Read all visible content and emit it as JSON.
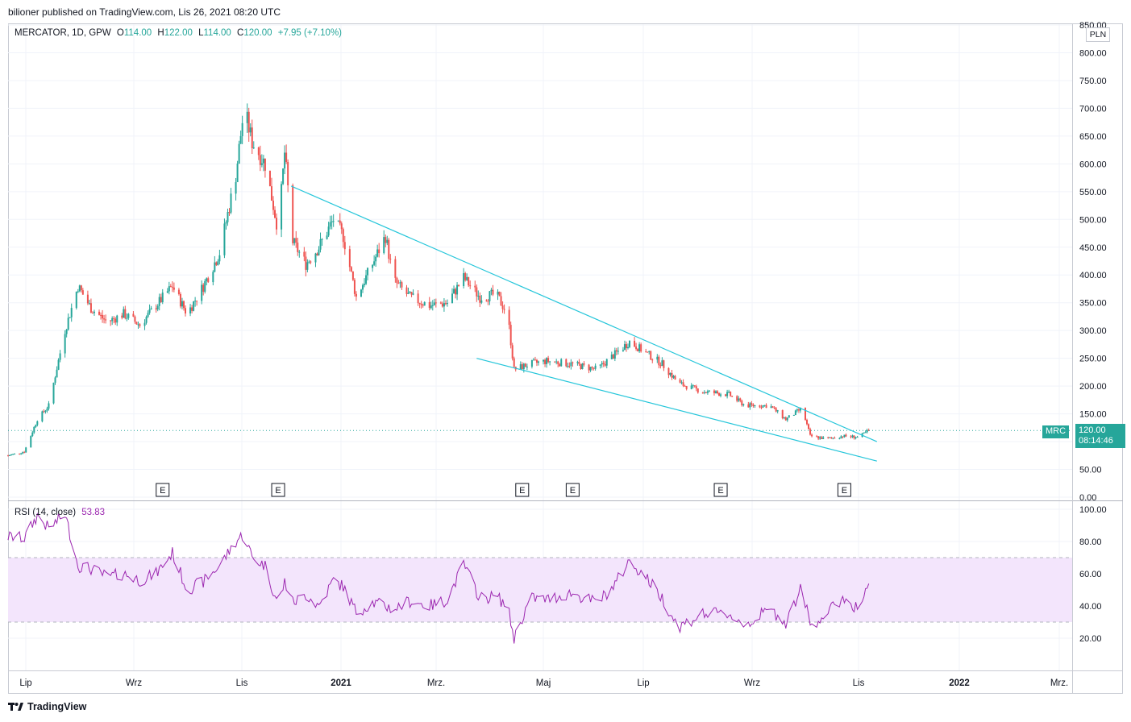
{
  "header": {
    "published": "bilioner published on TradingView.com, Lis 26, 2021 08:20 UTC"
  },
  "legend": {
    "symbol": "MERCATOR, 1D, GPW",
    "open_label": "O",
    "open": "114.00",
    "high_label": "H",
    "high": "122.00",
    "low_label": "L",
    "low": "114.00",
    "close_label": "C",
    "close": "120.00",
    "change": "+7.95 (+7.10%)"
  },
  "rsi_legend": {
    "label": "RSI (14, close)",
    "value": "53.83"
  },
  "price_axis": {
    "currency": "PLN",
    "ticks": [
      "850.00",
      "800.00",
      "750.00",
      "700.00",
      "650.00",
      "600.00",
      "550.00",
      "500.00",
      "450.00",
      "400.00",
      "350.00",
      "300.00",
      "250.00",
      "200.00",
      "150.00",
      "100.00",
      "50.00",
      "0.00"
    ]
  },
  "rsi_axis": {
    "ticks": [
      "100.00",
      "80.00",
      "60.00",
      "40.00",
      "20.00"
    ]
  },
  "time_axis": {
    "labels": [
      "Lip",
      "Wrz",
      "Lis",
      "2021",
      "Mrz.",
      "Maj",
      "Lip",
      "Wrz",
      "Lis",
      "2022",
      "Mrz."
    ]
  },
  "last_price": {
    "ticker": "MRC",
    "price": "120.00",
    "countdown": "08:14:46"
  },
  "earnings_marker": "E",
  "footer": {
    "brand": "TradingView"
  },
  "colors": {
    "up": "#26a69a",
    "down": "#ef5350",
    "trendline": "#26c6da",
    "rsi": "#9c27b0",
    "rsi_band": "#f3e5fc",
    "accent": "#26a69a"
  },
  "chart_data": {
    "type": "candlestick",
    "symbol": "MERCATOR",
    "interval": "1D",
    "exchange": "GPW",
    "currency": "PLN",
    "ylim": [
      0,
      850
    ],
    "x_range": [
      "2020-06-15",
      "2022-03-31"
    ],
    "price_path": [
      [
        "2020-06-15",
        75
      ],
      [
        "2020-06-25",
        82
      ],
      [
        "2020-07-03",
        140
      ],
      [
        "2020-07-10",
        165
      ],
      [
        "2020-07-20",
        300
      ],
      [
        "2020-07-28",
        380
      ],
      [
        "2020-08-05",
        340
      ],
      [
        "2020-08-15",
        315
      ],
      [
        "2020-08-25",
        330
      ],
      [
        "2020-09-04",
        310
      ],
      [
        "2020-09-14",
        345
      ],
      [
        "2020-09-24",
        380
      ],
      [
        "2020-10-03",
        330
      ],
      [
        "2020-10-13",
        380
      ],
      [
        "2020-10-23",
        440
      ],
      [
        "2020-11-02",
        580
      ],
      [
        "2020-11-07",
        700
      ],
      [
        "2020-11-12",
        640
      ],
      [
        "2020-11-20",
        600
      ],
      [
        "2020-11-28",
        480
      ],
      [
        "2020-12-02",
        620
      ],
      [
        "2020-12-07",
        460
      ],
      [
        "2020-12-15",
        420
      ],
      [
        "2020-12-23",
        450
      ],
      [
        "2021-01-01",
        500
      ],
      [
        "2021-01-07",
        470
      ],
      [
        "2021-01-15",
        360
      ],
      [
        "2021-01-25",
        420
      ],
      [
        "2021-02-02",
        470
      ],
      [
        "2021-02-07",
        390
      ],
      [
        "2021-02-17",
        360
      ],
      [
        "2021-03-01",
        345
      ],
      [
        "2021-03-12",
        350
      ],
      [
        "2021-03-22",
        395
      ],
      [
        "2021-04-01",
        360
      ],
      [
        "2021-04-11",
        365
      ],
      [
        "2021-04-18",
        330
      ],
      [
        "2021-04-22",
        230
      ],
      [
        "2021-05-02",
        240
      ],
      [
        "2021-05-12",
        245
      ],
      [
        "2021-05-27",
        240
      ],
      [
        "2021-06-12",
        230
      ],
      [
        "2021-06-22",
        255
      ],
      [
        "2021-07-02",
        280
      ],
      [
        "2021-07-12",
        260
      ],
      [
        "2021-07-22",
        240
      ],
      [
        "2021-08-01",
        205
      ],
      [
        "2021-08-16",
        190
      ],
      [
        "2021-09-01",
        185
      ],
      [
        "2021-09-11",
        165
      ],
      [
        "2021-09-26",
        165
      ],
      [
        "2021-10-06",
        140
      ],
      [
        "2021-10-16",
        160
      ],
      [
        "2021-10-21",
        110
      ],
      [
        "2021-10-31",
        105
      ],
      [
        "2021-11-10",
        110
      ],
      [
        "2021-11-20",
        108
      ],
      [
        "2021-11-26",
        120
      ]
    ],
    "last_close": 120.0,
    "trendlines": [
      {
        "name": "upper",
        "points": [
          [
            "2020-12-06",
            560
          ],
          [
            "2021-12-01",
            100
          ]
        ]
      },
      {
        "name": "lower",
        "points": [
          [
            "2021-03-30",
            250
          ],
          [
            "2021-12-01",
            65
          ]
        ]
      }
    ],
    "earnings_dates": [
      "2020-09-18",
      "2020-11-28",
      "2021-04-27",
      "2021-05-28",
      "2021-08-27",
      "2021-11-11"
    ],
    "rsi": {
      "period": 14,
      "last": 53.83,
      "ylim": [
        0,
        105
      ],
      "band": [
        30,
        70
      ],
      "path": [
        [
          "2020-06-15",
          83
        ],
        [
          "2020-06-25",
          82
        ],
        [
          "2020-07-03",
          96
        ],
        [
          "2020-07-10",
          88
        ],
        [
          "2020-07-20",
          97
        ],
        [
          "2020-07-28",
          65
        ],
        [
          "2020-08-05",
          63
        ],
        [
          "2020-08-15",
          58
        ],
        [
          "2020-08-25",
          60
        ],
        [
          "2020-09-04",
          56
        ],
        [
          "2020-09-14",
          60
        ],
        [
          "2020-09-24",
          73
        ],
        [
          "2020-10-03",
          50
        ],
        [
          "2020-10-13",
          55
        ],
        [
          "2020-10-23",
          65
        ],
        [
          "2020-11-02",
          80
        ],
        [
          "2020-11-07",
          85
        ],
        [
          "2020-11-12",
          70
        ],
        [
          "2020-11-20",
          65
        ],
        [
          "2020-11-28",
          40
        ],
        [
          "2020-12-02",
          55
        ],
        [
          "2020-12-07",
          42
        ],
        [
          "2020-12-15",
          47
        ],
        [
          "2020-12-23",
          40
        ],
        [
          "2021-01-01",
          56
        ],
        [
          "2021-01-07",
          52
        ],
        [
          "2021-01-15",
          36
        ],
        [
          "2021-01-25",
          42
        ],
        [
          "2021-02-02",
          40
        ],
        [
          "2021-02-07",
          38
        ],
        [
          "2021-02-17",
          43
        ],
        [
          "2021-03-01",
          40
        ],
        [
          "2021-03-12",
          44
        ],
        [
          "2021-03-22",
          66
        ],
        [
          "2021-04-01",
          45
        ],
        [
          "2021-04-11",
          46
        ],
        [
          "2021-04-18",
          40
        ],
        [
          "2021-04-22",
          20
        ],
        [
          "2021-05-02",
          45
        ],
        [
          "2021-05-12",
          44
        ],
        [
          "2021-05-27",
          48
        ],
        [
          "2021-06-12",
          42
        ],
        [
          "2021-06-22",
          52
        ],
        [
          "2021-07-02",
          68
        ],
        [
          "2021-07-12",
          58
        ],
        [
          "2021-07-22",
          45
        ],
        [
          "2021-08-01",
          27
        ],
        [
          "2021-08-16",
          35
        ],
        [
          "2021-09-01",
          35
        ],
        [
          "2021-09-11",
          28
        ],
        [
          "2021-09-26",
          38
        ],
        [
          "2021-10-06",
          30
        ],
        [
          "2021-10-16",
          52
        ],
        [
          "2021-10-21",
          28
        ],
        [
          "2021-10-31",
          35
        ],
        [
          "2021-11-10",
          45
        ],
        [
          "2021-11-20",
          38
        ],
        [
          "2021-11-26",
          54
        ]
      ]
    }
  }
}
